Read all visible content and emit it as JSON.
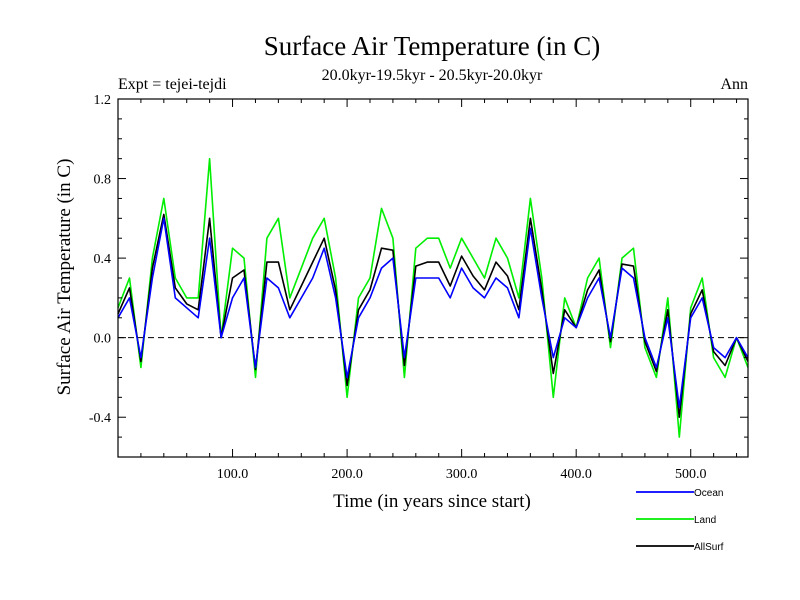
{
  "chart_data": {
    "type": "line",
    "title": "Surface Air Temperature (in C)",
    "subtitle": "20.0kyr-19.5kyr - 20.5kyr-20.0kyr",
    "left_label": "Expt = tejei-tejdi",
    "right_label": "Ann",
    "xlabel": "Time (in years since start)",
    "ylabel": "Surface Air Temperature (in C)",
    "xlim": [
      0,
      550
    ],
    "ylim": [
      -0.6,
      1.2
    ],
    "x_ticks": [
      100,
      200,
      300,
      400,
      500
    ],
    "x_tick_labels": [
      "100.0",
      "200.0",
      "300.0",
      "400.0",
      "500.0"
    ],
    "y_ticks": [
      -0.4,
      0.0,
      0.4,
      0.8,
      1.2
    ],
    "y_tick_labels": [
      "-0.4",
      "0.0",
      "0.4",
      "0.8",
      "1.2"
    ],
    "zero_line": true,
    "legend_position": "bottom-right",
    "x": [
      0,
      10,
      20,
      30,
      40,
      50,
      60,
      70,
      80,
      90,
      100,
      110,
      120,
      130,
      140,
      150,
      160,
      170,
      180,
      190,
      200,
      210,
      220,
      230,
      240,
      250,
      260,
      270,
      280,
      290,
      300,
      310,
      320,
      330,
      340,
      350,
      360,
      370,
      380,
      390,
      400,
      410,
      420,
      430,
      440,
      450,
      460,
      470,
      480,
      490,
      500,
      510,
      520,
      530,
      540,
      550
    ],
    "series": [
      {
        "name": "Ocean",
        "color": "#0000ff",
        "values": [
          0.1,
          0.2,
          -0.1,
          0.3,
          0.6,
          0.2,
          0.15,
          0.1,
          0.5,
          0.0,
          0.2,
          0.3,
          -0.15,
          0.3,
          0.25,
          0.1,
          0.2,
          0.3,
          0.45,
          0.2,
          -0.2,
          0.1,
          0.2,
          0.35,
          0.4,
          -0.1,
          0.3,
          0.3,
          0.3,
          0.2,
          0.35,
          0.25,
          0.2,
          0.3,
          0.25,
          0.1,
          0.55,
          0.2,
          -0.1,
          0.1,
          0.05,
          0.2,
          0.3,
          0.0,
          0.35,
          0.3,
          0.0,
          -0.15,
          0.1,
          -0.35,
          0.1,
          0.2,
          -0.05,
          -0.1,
          0.0,
          -0.1
        ]
      },
      {
        "name": "Land",
        "color": "#00ee00",
        "values": [
          0.15,
          0.3,
          -0.15,
          0.4,
          0.7,
          0.3,
          0.2,
          0.2,
          0.9,
          0.0,
          0.45,
          0.4,
          -0.2,
          0.5,
          0.6,
          0.2,
          0.35,
          0.5,
          0.6,
          0.3,
          -0.3,
          0.2,
          0.3,
          0.65,
          0.5,
          -0.2,
          0.45,
          0.5,
          0.5,
          0.35,
          0.5,
          0.4,
          0.3,
          0.5,
          0.4,
          0.2,
          0.7,
          0.3,
          -0.3,
          0.2,
          0.05,
          0.3,
          0.4,
          -0.05,
          0.4,
          0.45,
          -0.05,
          -0.2,
          0.2,
          -0.5,
          0.15,
          0.3,
          -0.1,
          -0.2,
          0.0,
          -0.15
        ]
      },
      {
        "name": "AllSurf",
        "color": "#000000",
        "values": [
          0.12,
          0.25,
          -0.12,
          0.35,
          0.62,
          0.25,
          0.17,
          0.14,
          0.6,
          0.0,
          0.3,
          0.34,
          -0.16,
          0.38,
          0.38,
          0.14,
          0.26,
          0.38,
          0.5,
          0.24,
          -0.24,
          0.14,
          0.24,
          0.45,
          0.44,
          -0.14,
          0.36,
          0.38,
          0.38,
          0.26,
          0.41,
          0.31,
          0.24,
          0.38,
          0.31,
          0.14,
          0.6,
          0.24,
          -0.18,
          0.14,
          0.05,
          0.24,
          0.34,
          -0.02,
          0.37,
          0.36,
          -0.02,
          -0.17,
          0.14,
          -0.4,
          0.12,
          0.24,
          -0.07,
          -0.14,
          0.0,
          -0.12
        ]
      }
    ]
  }
}
